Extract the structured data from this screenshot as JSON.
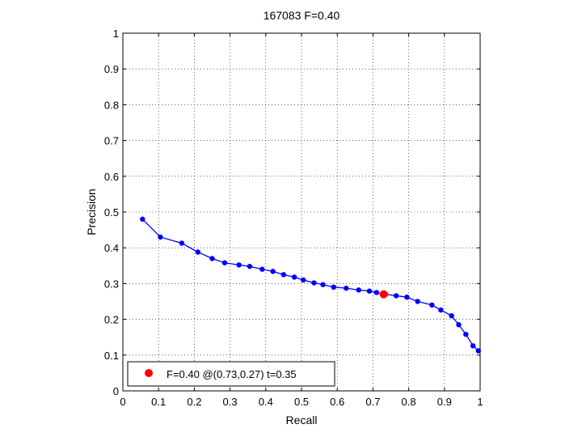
{
  "chart_data": {
    "type": "line",
    "title": "167083 F=0.40",
    "xlabel": "Recall",
    "ylabel": "Precision",
    "xlim": [
      0,
      1
    ],
    "ylim": [
      0,
      1
    ],
    "xticks": [
      "0",
      "0.1",
      "0.2",
      "0.3",
      "0.4",
      "0.5",
      "0.6",
      "0.7",
      "0.8",
      "0.9",
      "1"
    ],
    "yticks": [
      "0",
      "0.1",
      "0.2",
      "0.3",
      "0.4",
      "0.5",
      "0.6",
      "0.7",
      "0.8",
      "0.9",
      "1"
    ],
    "grid": true,
    "series": [
      {
        "color": "#0000ff",
        "x": [
          0.055,
          0.105,
          0.165,
          0.21,
          0.25,
          0.285,
          0.325,
          0.355,
          0.39,
          0.42,
          0.45,
          0.48,
          0.505,
          0.535,
          0.56,
          0.59,
          0.625,
          0.66,
          0.69,
          0.71,
          0.735,
          0.765,
          0.795,
          0.825,
          0.865,
          0.89,
          0.92,
          0.94,
          0.96,
          0.98,
          0.995
        ],
        "y": [
          0.48,
          0.43,
          0.413,
          0.388,
          0.37,
          0.358,
          0.352,
          0.348,
          0.34,
          0.334,
          0.325,
          0.318,
          0.31,
          0.302,
          0.297,
          0.29,
          0.287,
          0.282,
          0.279,
          0.275,
          0.27,
          0.266,
          0.262,
          0.25,
          0.24,
          0.226,
          0.21,
          0.185,
          0.158,
          0.126,
          0.112
        ]
      }
    ],
    "best_point": {
      "x": 0.73,
      "y": 0.27,
      "color": "#ff0000",
      "legend": "F=0.40 @(0.73,0.27) t=0.35"
    },
    "legend_position": "bottom-left"
  }
}
